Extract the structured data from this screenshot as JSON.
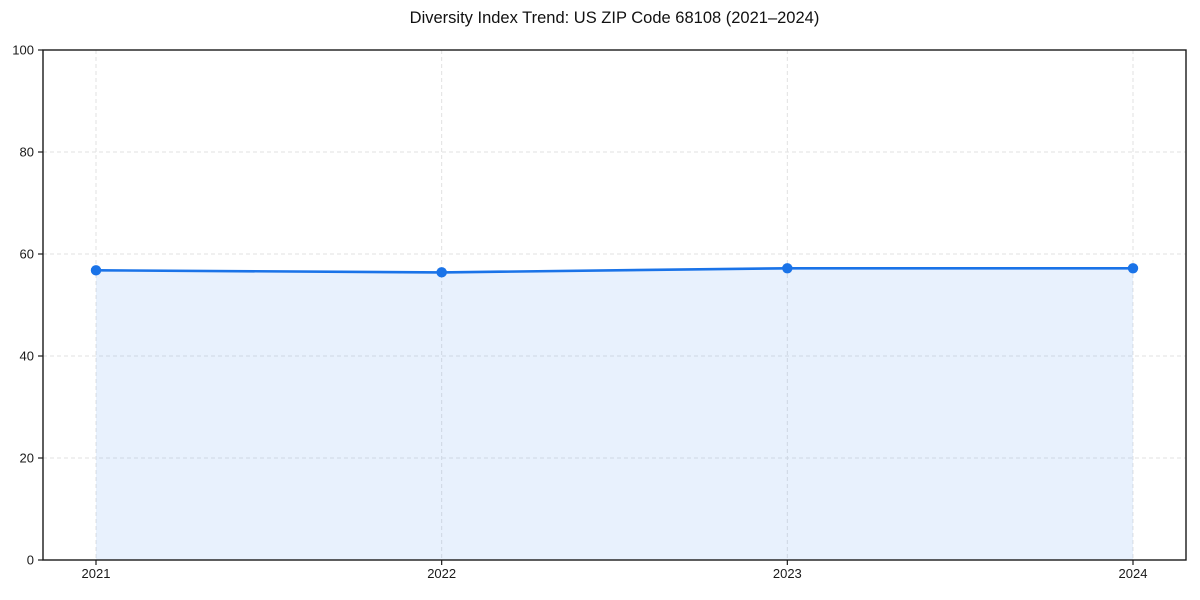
{
  "window": {
    "background": "#ffffff"
  },
  "chart_data": {
    "type": "area",
    "title": "Diversity Index Trend: US ZIP Code 68108 (2021–2024)",
    "categories": [
      "2021",
      "2022",
      "2023",
      "2024"
    ],
    "series": [
      {
        "name": "Diversity Index",
        "values": [
          56.8,
          56.4,
          57.2,
          57.2
        ]
      }
    ],
    "xlabel": "",
    "ylabel": "",
    "ylim": [
      0,
      100
    ],
    "yticks": [
      0,
      20,
      40,
      60,
      80,
      100
    ],
    "grid": true,
    "grid_style": "dashed",
    "legend_position": "none",
    "marker": "circle",
    "colors": {
      "line": "#1a73e8",
      "marker": "#1a73e8",
      "fill": "rgba(26,115,232,0.10)",
      "grid": "#e2e2e2",
      "axis": "#1a1a1a",
      "tick_label": "#1a1a1a",
      "title": "#111111",
      "background": "#ffffff"
    }
  }
}
